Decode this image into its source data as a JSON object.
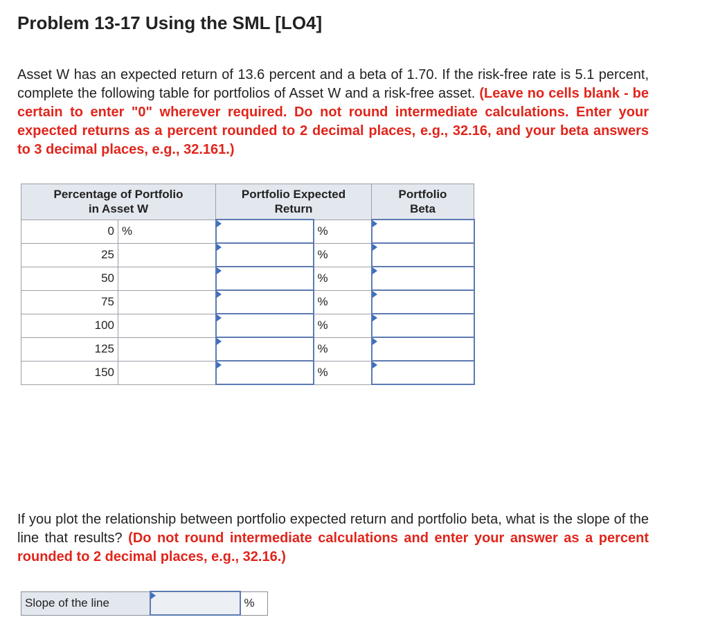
{
  "title": "Problem 13-17 Using the SML [LO4]",
  "intro": {
    "text": "Asset W has an expected return of 13.6 percent and a beta of 1.70. If the risk-free rate is 5.1 percent, complete the following table for portfolios of Asset W and a risk-free asset.",
    "instructions": "(Leave no cells blank - be certain to enter \"0\" wherever required. Do not round intermediate calculations. Enter your expected returns as a percent rounded to 2 decimal places, e.g., 32.16, and your beta answers to 3 decimal places, e.g., 32.161.)"
  },
  "table": {
    "headers": {
      "pct": "Percentage of Portfolio in Asset W",
      "return": "Portfolio Expected Return",
      "beta": "Portfolio Beta"
    },
    "percent_sign": "%",
    "rows": [
      {
        "pct": "0",
        "first_unit": "%"
      },
      {
        "pct": "25",
        "first_unit": ""
      },
      {
        "pct": "50",
        "first_unit": ""
      },
      {
        "pct": "75",
        "first_unit": ""
      },
      {
        "pct": "100",
        "first_unit": ""
      },
      {
        "pct": "125",
        "first_unit": ""
      },
      {
        "pct": "150",
        "first_unit": ""
      }
    ]
  },
  "question": {
    "text": "If you plot the relationship between portfolio expected return and portfolio beta, what is the slope of the line that results?",
    "instructions": "(Do not round intermediate calculations and enter your answer as a percent rounded to 2 decimal places, e.g., 32.16.)"
  },
  "slope": {
    "label": "Slope of the line",
    "unit": "%",
    "value": ""
  },
  "colors": {
    "instruction_red": "#e0251b",
    "header_bg": "#e3e7ee",
    "input_border": "#5b7ab2",
    "input_marker": "#3e6ec0"
  }
}
